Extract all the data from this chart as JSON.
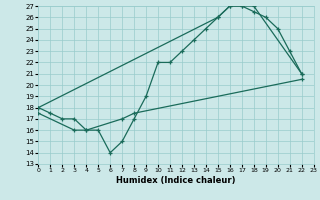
{
  "xlabel": "Humidex (Indice chaleur)",
  "bg_color": "#cce8e8",
  "grid_color": "#99cccc",
  "line_color": "#1a6b5a",
  "xmin": 0,
  "xmax": 23,
  "ymin": 13,
  "ymax": 27,
  "line1_x": [
    0,
    1,
    2,
    3,
    4,
    5,
    6,
    7,
    8,
    9,
    10,
    11,
    12,
    13,
    14,
    15,
    16,
    17,
    18,
    22
  ],
  "line1_y": [
    18,
    17.5,
    17,
    17,
    16,
    16,
    14,
    15,
    17,
    19,
    22,
    22,
    23,
    24,
    25,
    26,
    27,
    27,
    27,
    21
  ],
  "line2_x": [
    0,
    15,
    16,
    17,
    18,
    19,
    20,
    21,
    22
  ],
  "line2_y": [
    18,
    26,
    27,
    27,
    26.5,
    26,
    25,
    23,
    21
  ],
  "line3_x": [
    0,
    3,
    4,
    7,
    8,
    22
  ],
  "line3_y": [
    17.5,
    16,
    16,
    17,
    17.5,
    20.5
  ],
  "xticks": [
    0,
    1,
    2,
    3,
    4,
    5,
    6,
    7,
    8,
    9,
    10,
    11,
    12,
    13,
    14,
    15,
    16,
    17,
    18,
    19,
    20,
    21,
    22,
    23
  ],
  "yticks": [
    13,
    14,
    15,
    16,
    17,
    18,
    19,
    20,
    21,
    22,
    23,
    24,
    25,
    26,
    27
  ]
}
